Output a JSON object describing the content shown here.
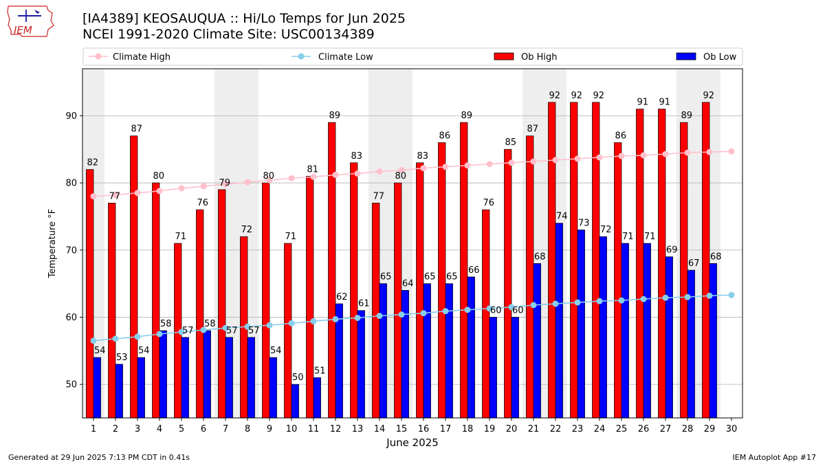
{
  "logo": {
    "text": "IEM"
  },
  "header": {
    "title": "[IA4389] KEOSAUQUA :: Hi/Lo Temps for Jun 2025",
    "subtitle": "NCEI 1991-2020 Climate Site: USC00134389"
  },
  "footer": {
    "left": "Generated at 29 Jun 2025 7:13 PM CDT in 0.41s",
    "right": "IEM Autoplot App #17"
  },
  "colors": {
    "ob_high": "#ff0000",
    "ob_low": "#0000ff",
    "climate_high": "#ffc0cb",
    "climate_low": "#87ceeb",
    "weekend_shade": "#eeeeee",
    "grid": "#b0b0b0"
  },
  "chart_data": {
    "type": "bar",
    "xlabel": "June 2025",
    "ylabel": "Temperature °F",
    "ylim": [
      45,
      97
    ],
    "yticks": [
      50,
      60,
      70,
      80,
      90
    ],
    "categories": [
      "1",
      "2",
      "3",
      "4",
      "5",
      "6",
      "7",
      "8",
      "9",
      "10",
      "11",
      "12",
      "13",
      "14",
      "15",
      "16",
      "17",
      "18",
      "19",
      "20",
      "21",
      "22",
      "23",
      "24",
      "25",
      "26",
      "27",
      "28",
      "29",
      "30"
    ],
    "weekend_days": [
      1,
      7,
      8,
      14,
      15,
      21,
      22,
      28,
      29
    ],
    "grid": "horizontal",
    "legend_position": "top",
    "series": [
      {
        "name": "Ob High",
        "kind": "bar",
        "values": [
          82,
          77,
          87,
          80,
          71,
          76,
          79,
          72,
          80,
          71,
          81,
          89,
          83,
          77,
          80,
          83,
          86,
          89,
          76,
          85,
          87,
          92,
          92,
          92,
          86,
          91,
          91,
          89,
          92,
          null
        ]
      },
      {
        "name": "Ob Low",
        "kind": "bar",
        "values": [
          54,
          53,
          54,
          58,
          57,
          58,
          57,
          57,
          54,
          50,
          51,
          62,
          61,
          65,
          64,
          65,
          65,
          66,
          60,
          60,
          68,
          74,
          73,
          72,
          71,
          71,
          69,
          67,
          68,
          null
        ]
      },
      {
        "name": "Climate High",
        "kind": "line",
        "values": [
          78.0,
          78.2,
          78.5,
          78.8,
          79.2,
          79.5,
          79.8,
          80.1,
          80.4,
          80.7,
          80.9,
          81.2,
          81.4,
          81.7,
          81.9,
          82.2,
          82.4,
          82.6,
          82.8,
          83.0,
          83.2,
          83.4,
          83.6,
          83.8,
          84.0,
          84.1,
          84.3,
          84.5,
          84.6,
          84.7
        ]
      },
      {
        "name": "Climate Low",
        "kind": "line",
        "values": [
          56.5,
          56.8,
          57.1,
          57.5,
          57.8,
          58.1,
          58.4,
          58.6,
          58.8,
          59.1,
          59.4,
          59.7,
          59.9,
          60.2,
          60.4,
          60.6,
          60.9,
          61.1,
          61.3,
          61.5,
          61.8,
          62.0,
          62.2,
          62.4,
          62.5,
          62.7,
          62.9,
          63.0,
          63.2,
          63.3
        ]
      }
    ]
  }
}
